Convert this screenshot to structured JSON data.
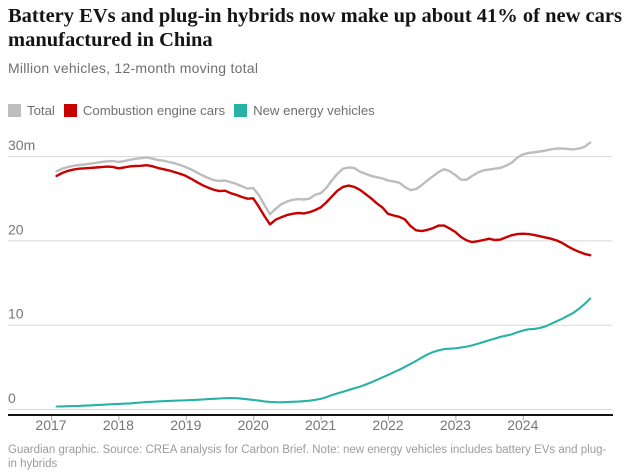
{
  "header": {
    "title_lines": [
      "Battery EVs and plug-in hybrids now make up about 41% of new cars",
      "manufactured in China"
    ],
    "subtitle": "Million vehicles, 12-month moving total"
  },
  "legend": [
    {
      "label": "Total",
      "color": "#bdbdbd"
    },
    {
      "label": "Combustion engine cars",
      "color": "#c70000"
    },
    {
      "label": "New energy vehicles",
      "color": "#28b2a6"
    }
  ],
  "chart_data": {
    "type": "line",
    "title": "Battery EVs and plug-in hybrids now make up about 41% of new cars manufactured in China",
    "subtitle": "Million vehicles, 12-month moving total",
    "x_unit": "decimal year, monthly points",
    "x_start": 2017.0833,
    "x_step": 0.083333,
    "xlim": [
      2017,
      2025
    ],
    "ylim": [
      0,
      32.5
    ],
    "grid": "horizontal",
    "yticks": [
      {
        "v": 0,
        "label": "0"
      },
      {
        "v": 10,
        "label": "10"
      },
      {
        "v": 20,
        "label": "20"
      },
      {
        "v": 30,
        "label": "30m"
      }
    ],
    "xticks": [
      {
        "v": 2017,
        "label": "2017"
      },
      {
        "v": 2018,
        "label": "2018"
      },
      {
        "v": 2019,
        "label": "2019"
      },
      {
        "v": 2020,
        "label": "2020"
      },
      {
        "v": 2021,
        "label": "2021"
      },
      {
        "v": 2022,
        "label": "2022"
      },
      {
        "v": 2023,
        "label": "2023"
      },
      {
        "v": 2024,
        "label": "2024"
      }
    ],
    "series": [
      {
        "name": "Total",
        "color": "#bdbdbd",
        "width": 2.4,
        "values": [
          28.2,
          28.5,
          28.7,
          28.85,
          28.95,
          29.0,
          29.1,
          29.2,
          29.3,
          29.38,
          29.42,
          29.3,
          29.4,
          29.55,
          29.68,
          29.75,
          29.85,
          29.7,
          29.55,
          29.45,
          29.3,
          29.15,
          28.95,
          28.7,
          28.4,
          28.05,
          27.7,
          27.4,
          27.15,
          27.05,
          27.1,
          26.9,
          26.7,
          26.4,
          26.15,
          26.2,
          25.4,
          24.2,
          23.1,
          23.75,
          24.3,
          24.6,
          24.8,
          24.9,
          24.85,
          24.95,
          25.4,
          25.6,
          26.2,
          27.1,
          27.9,
          28.5,
          28.65,
          28.6,
          28.15,
          27.9,
          27.65,
          27.5,
          27.35,
          27.1,
          27.0,
          26.85,
          26.35,
          25.95,
          26.1,
          26.55,
          27.1,
          27.6,
          28.1,
          28.45,
          28.2,
          27.75,
          27.2,
          27.2,
          27.65,
          28.05,
          28.3,
          28.4,
          28.5,
          28.6,
          28.85,
          29.2,
          29.8,
          30.2,
          30.35,
          30.45,
          30.55,
          30.65,
          30.8,
          30.9,
          30.9,
          30.85,
          30.8,
          30.9,
          31.1,
          31.6
        ]
      },
      {
        "name": "Combustion engine cars",
        "color": "#c70000",
        "width": 2.4,
        "values": [
          27.65,
          28.0,
          28.25,
          28.4,
          28.5,
          28.55,
          28.6,
          28.65,
          28.7,
          28.75,
          28.72,
          28.55,
          28.65,
          28.78,
          28.82,
          28.85,
          28.92,
          28.8,
          28.6,
          28.45,
          28.3,
          28.1,
          27.9,
          27.65,
          27.3,
          26.9,
          26.55,
          26.25,
          26.0,
          25.85,
          25.9,
          25.6,
          25.4,
          25.15,
          24.95,
          25.0,
          24.0,
          22.9,
          21.9,
          22.45,
          22.75,
          23.0,
          23.15,
          23.25,
          23.2,
          23.35,
          23.6,
          23.9,
          24.5,
          25.2,
          25.9,
          26.35,
          26.5,
          26.35,
          26.0,
          25.5,
          25.0,
          24.4,
          23.9,
          23.15,
          22.95,
          22.8,
          22.5,
          21.7,
          21.2,
          21.1,
          21.25,
          21.45,
          21.75,
          21.75,
          21.4,
          21.0,
          20.4,
          20.0,
          19.8,
          19.9,
          20.05,
          20.2,
          20.05,
          20.1,
          20.35,
          20.6,
          20.75,
          20.8,
          20.75,
          20.65,
          20.5,
          20.35,
          20.2,
          20.0,
          19.7,
          19.3,
          18.95,
          18.65,
          18.4,
          18.25
        ]
      },
      {
        "name": "New energy vehicles",
        "color": "#28b2a6",
        "width": 2.1,
        "values": [
          0.3,
          0.31,
          0.33,
          0.35,
          0.37,
          0.4,
          0.43,
          0.46,
          0.5,
          0.54,
          0.57,
          0.6,
          0.63,
          0.67,
          0.72,
          0.77,
          0.82,
          0.86,
          0.9,
          0.93,
          0.96,
          0.99,
          1.01,
          1.03,
          1.06,
          1.09,
          1.13,
          1.17,
          1.21,
          1.25,
          1.28,
          1.3,
          1.28,
          1.22,
          1.15,
          1.08,
          1.0,
          0.9,
          0.84,
          0.81,
          0.8,
          0.82,
          0.85,
          0.88,
          0.92,
          0.98,
          1.08,
          1.2,
          1.4,
          1.65,
          1.85,
          2.05,
          2.25,
          2.45,
          2.65,
          2.9,
          3.15,
          3.45,
          3.75,
          4.05,
          4.35,
          4.65,
          5.0,
          5.35,
          5.7,
          6.1,
          6.45,
          6.75,
          6.95,
          7.1,
          7.15,
          7.2,
          7.3,
          7.4,
          7.55,
          7.75,
          7.95,
          8.15,
          8.35,
          8.55,
          8.7,
          8.85,
          9.1,
          9.3,
          9.45,
          9.5,
          9.6,
          9.8,
          10.1,
          10.4,
          10.7,
          11.05,
          11.4,
          11.9,
          12.45,
          13.1
        ]
      }
    ]
  },
  "footer": {
    "text": "Guardian graphic. Source: CREA analysis for Carbon Brief. Note: new energy vehicles includes battery EVs and plug-in hybrids"
  }
}
